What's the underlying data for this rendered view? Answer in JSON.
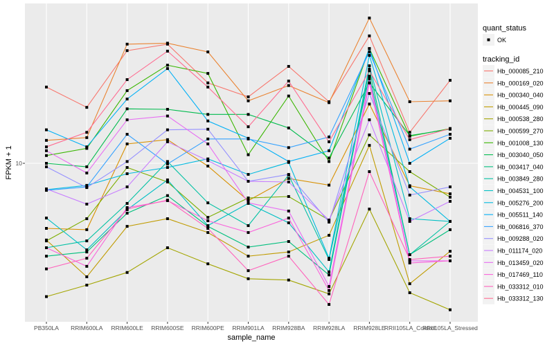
{
  "chart_data": {
    "type": "line",
    "xlabel": "sample_name",
    "ylabel": "FPKM + 1",
    "y_scale": "log10",
    "y_ticks": [
      10
    ],
    "y_tick_labels": [
      "10"
    ],
    "grid": true,
    "panel_background": "#EBEBEB",
    "legend_placement": "right",
    "categories": [
      "PB350LA",
      "RRIM600LA",
      "RRIM600LE",
      "RRIM600SE",
      "RRIM600PE",
      "RRIM901LA",
      "RRIM928BA",
      "RRIM928LA",
      "RRIM928LE",
      "RRII105LA_Control",
      "RRII105LA_Stressed"
    ],
    "point_legend": {
      "title": "quant_status",
      "items": [
        "OK"
      ]
    },
    "line_legend_title": "tracking_id",
    "series": [
      {
        "name": "Hb_000085_210",
        "color": "#F8766D",
        "values": [
          23.3,
          18.6,
          34.9,
          37.5,
          24.4,
          20.9,
          29.3,
          19.8,
          41.1,
          14.1,
          25.1
        ]
      },
      {
        "name": "Hb_000169_020",
        "color": "#EA8331",
        "values": [
          12.9,
          13.3,
          37.5,
          37.9,
          34.4,
          20.0,
          23.7,
          19.6,
          50.1,
          19.8,
          20.0
        ]
      },
      {
        "name": "Hb_000340_040",
        "color": "#D89000",
        "values": [
          4.86,
          4.79,
          12.4,
          13.0,
          9.7,
          6.61,
          8.45,
          7.85,
          19.3,
          7.8,
          7.13
        ]
      },
      {
        "name": "Hb_000445_090",
        "color": "#C09B00",
        "values": [
          4.27,
          2.84,
          4.97,
          5.41,
          4.64,
          3.57,
          3.74,
          4.5,
          12.2,
          2.63,
          3.77
        ]
      },
      {
        "name": "Hb_000538_280",
        "color": "#A3A500",
        "values": [
          2.28,
          2.59,
          2.98,
          3.92,
          3.28,
          2.78,
          2.74,
          2.35,
          6.02,
          2.38,
          1.97
        ]
      },
      {
        "name": "Hb_000599_270",
        "color": "#7CAE00",
        "values": [
          4.23,
          5.41,
          9.55,
          8.13,
          5.49,
          6.81,
          6.92,
          5.33,
          13.7,
          9.12,
          6.87
        ]
      },
      {
        "name": "Hb_001008_130",
        "color": "#39B600",
        "values": [
          10.9,
          11.8,
          22.4,
          29.7,
          27.1,
          11.0,
          21.1,
          10.2,
          35.7,
          13.5,
          14.7
        ]
      },
      {
        "name": "Hb_003040_050",
        "color": "#00BB4E",
        "values": [
          10.0,
          9.62,
          18.3,
          18.2,
          17.2,
          17.2,
          14.8,
          10.6,
          24.4,
          13.6,
          14.6
        ]
      },
      {
        "name": "Hb_003417_040",
        "color": "#00BF7D",
        "values": [
          3.57,
          3.74,
          5.75,
          6.99,
          4.97,
          3.95,
          4.2,
          2.9,
          28.4,
          3.63,
          4.79
        ]
      },
      {
        "name": "Hb_003849_280",
        "color": "#00C1A3",
        "values": [
          3.92,
          4.23,
          6.41,
          10.2,
          6.45,
          5.01,
          8.78,
          3.44,
          26.3,
          3.63,
          5.25
        ]
      },
      {
        "name": "Hb_004531_100",
        "color": "#00BFC4",
        "values": [
          5.45,
          3.83,
          5.98,
          8.32,
          5.01,
          6.41,
          5.17,
          3.0,
          29.5,
          5.41,
          5.25
        ]
      },
      {
        "name": "Hb_005276_200",
        "color": "#00BAE0",
        "values": [
          7.47,
          7.83,
          8.91,
          9.55,
          10.5,
          8.84,
          10.1,
          3.49,
          33.1,
          7.7,
          5.25
        ]
      },
      {
        "name": "Hb_005511_140",
        "color": "#00B0F6",
        "values": [
          14.5,
          12.0,
          20.4,
          28.6,
          16.0,
          13.2,
          10.2,
          11.5,
          35.7,
          10.0,
          13.2
        ]
      },
      {
        "name": "Hb_006816_370",
        "color": "#35A2FF",
        "values": [
          7.41,
          7.7,
          13.8,
          9.92,
          13.1,
          13.1,
          11.9,
          13.4,
          34.4,
          11.7,
          13.8
        ]
      },
      {
        "name": "Hb_009288_020",
        "color": "#9590FF",
        "values": [
          9.62,
          7.64,
          10.2,
          14.5,
          14.6,
          8.19,
          8.84,
          5.21,
          21.7,
          7.03,
          7.7
        ]
      },
      {
        "name": "Hb_011174_020",
        "color": "#C77CFF",
        "values": [
          7.53,
          6.36,
          7.7,
          12.7,
          10.3,
          8.19,
          8.13,
          5.33,
          16.2,
          5.25,
          6.56
        ]
      },
      {
        "name": "Hb_013459_020",
        "color": "#E76BF3",
        "values": [
          11.5,
          8.98,
          16.2,
          16.9,
          12.4,
          6.45,
          5.89,
          2.55,
          25.5,
          3.39,
          3.39
        ]
      },
      {
        "name": "Hb_017469_110",
        "color": "#FA62DB",
        "values": [
          3.92,
          3.19,
          6.12,
          6.61,
          5.29,
          4.64,
          5.45,
          2.44,
          24.4,
          3.31,
          3.39
        ]
      },
      {
        "name": "Hb_033312_010",
        "color": "#FF62BC",
        "values": [
          3.1,
          3.49,
          6.02,
          6.65,
          4.86,
          3.04,
          3.57,
          2.09,
          9.12,
          3.44,
          3.57
        ]
      },
      {
        "name": "Hb_033312_130",
        "color": "#FF6C91",
        "values": [
          12.0,
          14.1,
          25.3,
          34.7,
          23.3,
          15.0,
          24.9,
          12.7,
          27.9,
          13.0,
          14.7
        ]
      }
    ]
  }
}
